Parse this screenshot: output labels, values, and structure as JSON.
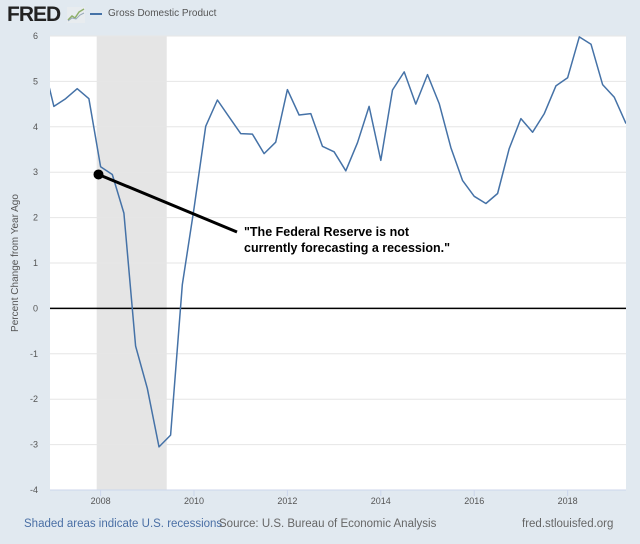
{
  "header": {
    "logo_text": "FRED",
    "logo_icon": "line-chart-icon",
    "legend_label": "Gross Domestic Product"
  },
  "footer": {
    "recession_note": "Shaded areas indicate U.S. recessions",
    "source": "Source: U.S. Bureau of Economic Analysis",
    "site": "fred.stlouisfed.org"
  },
  "annotation": {
    "line1": "\"The Federal Reserve is not",
    "line2": "currently forecasting a recession.\""
  },
  "colors": {
    "series": "#4572a7",
    "recession_shade": "#e5e5e5",
    "background": "#e1e9f0",
    "zero_line": "#000000",
    "annotation": "#000000"
  },
  "chart_data": {
    "type": "line",
    "title": "",
    "xlabel": "",
    "ylabel": "Percent Change from Year Ago",
    "xlim": [
      "2006-12-01",
      "2019-04-01"
    ],
    "ylim": [
      -4,
      6
    ],
    "grid": true,
    "legend_placement": "top-left",
    "x_ticks": [
      "2008",
      "2010",
      "2012",
      "2014",
      "2016",
      "2018"
    ],
    "y_ticks": [
      "-4",
      "-3",
      "-2",
      "-1",
      "0",
      "1",
      "2",
      "3",
      "4",
      "5",
      "6"
    ],
    "recessions": [
      {
        "start": "2007-12-01",
        "end": "2009-06-01"
      }
    ],
    "annotation_point": {
      "x": "2007-12-15",
      "y": 2.95
    },
    "series": [
      {
        "name": "Gross Domestic Product",
        "x": [
          "2006-10-01",
          "2007-01-01",
          "2007-04-01",
          "2007-07-01",
          "2007-10-01",
          "2008-01-01",
          "2008-04-01",
          "2008-07-01",
          "2008-10-01",
          "2009-01-01",
          "2009-04-01",
          "2009-07-01",
          "2009-10-01",
          "2010-01-01",
          "2010-04-01",
          "2010-07-01",
          "2010-10-01",
          "2011-01-01",
          "2011-04-01",
          "2011-07-01",
          "2011-10-01",
          "2012-01-01",
          "2012-04-01",
          "2012-07-01",
          "2012-10-01",
          "2013-01-01",
          "2013-04-01",
          "2013-07-01",
          "2013-10-01",
          "2014-01-01",
          "2014-04-01",
          "2014-07-01",
          "2014-10-01",
          "2015-01-01",
          "2015-04-01",
          "2015-07-01",
          "2015-10-01",
          "2016-01-01",
          "2016-04-01",
          "2016-07-01",
          "2016-10-01",
          "2017-01-01",
          "2017-04-01",
          "2017-07-01",
          "2017-10-01",
          "2018-01-01",
          "2018-04-01",
          "2018-07-01",
          "2018-10-01",
          "2019-01-01",
          "2019-04-01"
        ],
        "values": [
          5.5,
          4.45,
          4.62,
          4.84,
          4.62,
          3.12,
          2.95,
          2.1,
          -0.83,
          -1.76,
          -3.05,
          -2.79,
          0.52,
          2.2,
          4.01,
          4.59,
          4.22,
          3.85,
          3.84,
          3.41,
          3.66,
          4.82,
          4.26,
          4.29,
          3.57,
          3.45,
          3.03,
          3.65,
          4.45,
          3.26,
          4.81,
          5.21,
          4.5,
          5.15,
          4.51,
          3.54,
          2.82,
          2.47,
          2.31,
          2.53,
          3.52,
          4.18,
          3.88,
          4.29,
          4.9,
          5.08,
          5.98,
          5.82,
          4.93,
          4.65,
          4.07
        ]
      }
    ]
  }
}
